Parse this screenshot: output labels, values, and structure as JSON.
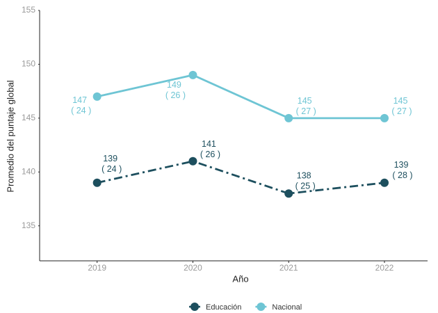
{
  "chart_data": {
    "type": "line",
    "x_label": "Año",
    "y_label": "Promedio del puntaje global",
    "x": [
      2019,
      2020,
      2021,
      2022
    ],
    "xlim": [
      2018.4,
      2022.45
    ],
    "xticks": [
      2019,
      2020,
      2021,
      2022
    ],
    "ylim": [
      131.75,
      155
    ],
    "yticks": [
      135,
      140,
      145,
      150,
      155
    ],
    "legend": "bottom",
    "series": [
      {
        "name": "Educación",
        "color": "#1d4f5e",
        "line_style": "dashdot",
        "values": [
          139,
          141,
          138,
          139
        ],
        "count_labels": [
          "( 24 )",
          "( 26 )",
          "( 25 )",
          "( 28 )"
        ]
      },
      {
        "name": "Nacional",
        "color": "#6ec5d4",
        "line_style": "solid",
        "values": [
          147,
          149,
          145,
          145
        ],
        "count_labels": [
          "( 24 )",
          "( 26 )",
          "( 27 )",
          "( 27 )"
        ]
      }
    ]
  }
}
